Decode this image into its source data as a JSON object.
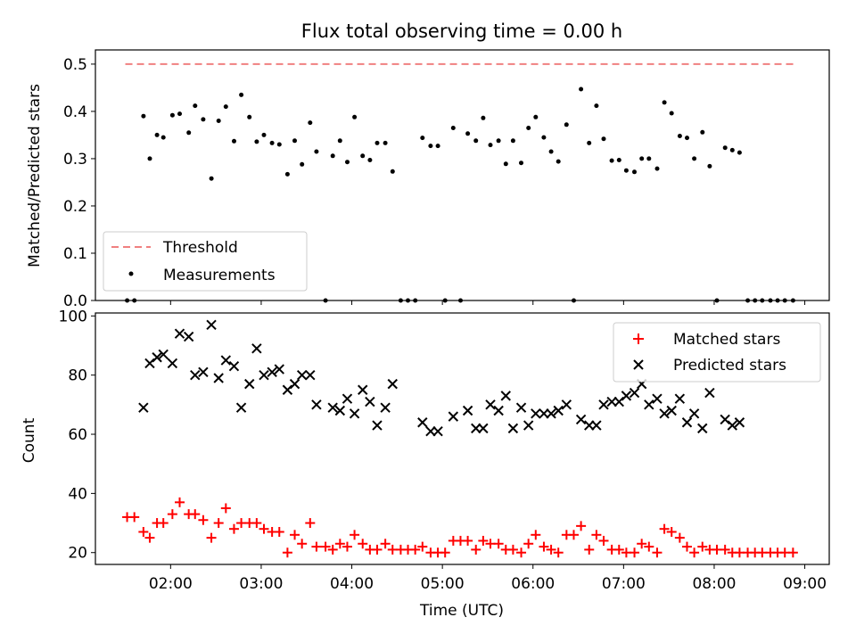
{
  "figure": {
    "title": "Flux total observing time = 0.00 h"
  },
  "chart_data": [
    {
      "type": "scatter",
      "panel": "top",
      "xlabel": "",
      "ylabel": "Matched/Predicted stars",
      "xlim": [
        1.17,
        9.27
      ],
      "ylim": [
        0.0,
        0.53
      ],
      "yticks": [
        0.0,
        0.1,
        0.2,
        0.3,
        0.4,
        0.5
      ],
      "yticklabels": [
        "0.0",
        "0.1",
        "0.2",
        "0.3",
        "0.4",
        "0.5"
      ],
      "grid": false,
      "legend_position": "lower-left",
      "series": [
        {
          "name": "Threshold",
          "kind": "dashed-line",
          "color": "#f08080",
          "x": [
            1.5,
            8.88
          ],
          "y": [
            0.5,
            0.5
          ]
        },
        {
          "name": "Measurements",
          "kind": "dots",
          "color": "#000000",
          "x": [
            1.52,
            1.6,
            1.7,
            1.77,
            1.85,
            1.92,
            2.02,
            2.1,
            2.2,
            2.27,
            2.36,
            2.45,
            2.53,
            2.61,
            2.7,
            2.78,
            2.87,
            2.95,
            3.03,
            3.12,
            3.2,
            3.29,
            3.37,
            3.45,
            3.54,
            3.61,
            3.71,
            3.79,
            3.87,
            3.95,
            4.03,
            4.12,
            4.2,
            4.28,
            4.37,
            4.45,
            4.54,
            4.62,
            4.7,
            4.78,
            4.87,
            4.95,
            5.03,
            5.12,
            5.2,
            5.28,
            5.37,
            5.45,
            5.53,
            5.62,
            5.7,
            5.78,
            5.87,
            5.95,
            6.03,
            6.12,
            6.2,
            6.28,
            6.37,
            6.45,
            6.53,
            6.62,
            6.7,
            6.78,
            6.87,
            6.95,
            7.03,
            7.12,
            7.2,
            7.28,
            7.37,
            7.45,
            7.53,
            7.62,
            7.7,
            7.78,
            7.87,
            7.95,
            8.03,
            8.12,
            8.2,
            8.28,
            8.37,
            8.45,
            8.53,
            8.62,
            8.7,
            8.78,
            8.87
          ],
          "y": [
            0.0,
            0.0,
            0.39,
            0.3,
            0.35,
            0.345,
            0.392,
            0.395,
            0.355,
            0.412,
            0.383,
            0.258,
            0.38,
            0.41,
            0.337,
            0.435,
            0.388,
            0.336,
            0.35,
            0.333,
            0.33,
            0.267,
            0.338,
            0.288,
            0.376,
            0.315,
            0.0,
            0.306,
            0.338,
            0.293,
            0.388,
            0.306,
            0.297,
            0.333,
            0.333,
            0.273,
            0.0,
            0.0,
            0.0,
            0.344,
            0.327,
            0.327,
            0.0,
            0.365,
            0.0,
            0.353,
            0.338,
            0.386,
            0.329,
            0.338,
            0.289,
            0.338,
            0.291,
            0.365,
            0.388,
            0.345,
            0.315,
            0.294,
            0.372,
            0.0,
            0.447,
            0.333,
            0.412,
            0.342,
            0.296,
            0.297,
            0.275,
            0.272,
            0.3,
            0.3,
            0.279,
            0.419,
            0.396,
            0.348,
            0.344,
            0.3,
            0.356,
            0.284,
            0.0,
            0.323,
            0.318,
            0.313,
            0.0,
            0.0,
            0.0,
            0.0,
            0.0,
            0.0,
            0.0
          ]
        }
      ]
    },
    {
      "type": "scatter",
      "panel": "bottom",
      "xlabel": "Time (UTC)",
      "ylabel": "Count",
      "xlim": [
        1.17,
        9.27
      ],
      "ylim": [
        16,
        101
      ],
      "xticks": [
        2,
        3,
        4,
        5,
        6,
        7,
        8,
        9
      ],
      "xticklabels": [
        "02:00",
        "03:00",
        "04:00",
        "05:00",
        "06:00",
        "07:00",
        "08:00",
        "09:00"
      ],
      "yticks": [
        20,
        40,
        60,
        80,
        100
      ],
      "yticklabels": [
        "20",
        "40",
        "60",
        "80",
        "100"
      ],
      "grid": false,
      "legend_position": "top-right",
      "series": [
        {
          "name": "Matched stars",
          "marker": "plus",
          "color": "#ff0000",
          "x": [
            1.52,
            1.6,
            1.7,
            1.77,
            1.85,
            1.92,
            2.02,
            2.1,
            2.2,
            2.27,
            2.36,
            2.45,
            2.53,
            2.61,
            2.7,
            2.78,
            2.87,
            2.95,
            3.03,
            3.12,
            3.2,
            3.29,
            3.37,
            3.45,
            3.54,
            3.61,
            3.71,
            3.79,
            3.87,
            3.95,
            4.03,
            4.12,
            4.2,
            4.28,
            4.37,
            4.45,
            4.54,
            4.62,
            4.7,
            4.78,
            4.87,
            4.95,
            5.03,
            5.12,
            5.2,
            5.28,
            5.37,
            5.45,
            5.53,
            5.62,
            5.7,
            5.78,
            5.87,
            5.95,
            6.03,
            6.12,
            6.2,
            6.28,
            6.37,
            6.45,
            6.53,
            6.62,
            6.7,
            6.78,
            6.87,
            6.95,
            7.03,
            7.12,
            7.2,
            7.28,
            7.37,
            7.45,
            7.53,
            7.62,
            7.7,
            7.78,
            7.87,
            7.95,
            8.03,
            8.12,
            8.2,
            8.28,
            8.37,
            8.45,
            8.53,
            8.62,
            8.7,
            8.78,
            8.87
          ],
          "y": [
            32,
            32,
            27,
            25,
            30,
            30,
            33,
            37,
            33,
            33,
            31,
            25,
            30,
            35,
            28,
            30,
            30,
            30,
            28,
            27,
            27,
            20,
            26,
            23,
            30,
            22,
            22,
            21,
            23,
            22,
            26,
            23,
            21,
            21,
            23,
            21,
            21,
            21,
            21,
            22,
            20,
            20,
            20,
            24,
            24,
            24,
            21,
            24,
            23,
            23,
            21,
            21,
            20,
            23,
            26,
            22,
            21,
            20,
            26,
            26,
            29,
            21,
            26,
            24,
            21,
            21,
            20,
            20,
            23,
            22,
            20,
            28,
            27,
            25,
            22,
            20,
            22,
            21,
            21,
            21,
            20,
            20,
            20,
            20,
            20,
            20,
            20,
            20,
            20
          ]
        },
        {
          "name": "Predicted stars",
          "marker": "x",
          "color": "#000000",
          "x": [
            1.7,
            1.77,
            1.85,
            1.92,
            2.02,
            2.1,
            2.2,
            2.27,
            2.36,
            2.45,
            2.53,
            2.61,
            2.7,
            2.78,
            2.87,
            2.95,
            3.03,
            3.12,
            3.2,
            3.29,
            3.37,
            3.45,
            3.54,
            3.61,
            3.79,
            3.87,
            3.95,
            4.03,
            4.12,
            4.2,
            4.28,
            4.37,
            4.45,
            4.78,
            4.87,
            4.95,
            5.12,
            5.28,
            5.37,
            5.45,
            5.53,
            5.62,
            5.7,
            5.78,
            5.87,
            5.95,
            6.03,
            6.12,
            6.2,
            6.28,
            6.37,
            6.53,
            6.62,
            6.7,
            6.78,
            6.87,
            6.95,
            7.03,
            7.12,
            7.2,
            7.28,
            7.37,
            7.45,
            7.53,
            7.62,
            7.7,
            7.78,
            7.87,
            7.95,
            8.12,
            8.2,
            8.28
          ],
          "y": [
            69,
            84,
            86,
            87,
            84,
            94,
            93,
            80,
            81,
            97,
            79,
            85,
            83,
            69,
            77,
            89,
            80,
            81,
            82,
            75,
            77,
            80,
            80,
            70,
            69,
            68,
            72,
            67,
            75,
            71,
            63,
            69,
            77,
            64,
            61,
            61,
            66,
            68,
            62,
            62,
            70,
            68,
            73,
            62,
            69,
            63,
            67,
            67,
            67,
            68,
            70,
            65,
            63,
            63,
            70,
            71,
            71,
            73,
            74,
            77,
            70,
            72,
            67,
            68,
            72,
            64,
            67,
            62,
            74,
            65,
            63,
            64
          ]
        }
      ]
    }
  ]
}
